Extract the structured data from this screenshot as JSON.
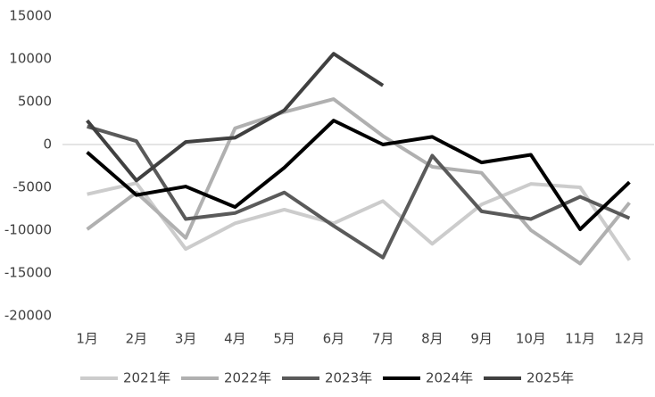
{
  "chart_data": {
    "type": "line",
    "categories": [
      "1月",
      "2月",
      "3月",
      "4月",
      "5月",
      "6月",
      "7月",
      "8月",
      "9月",
      "10月",
      "11月",
      "12月"
    ],
    "series": [
      {
        "name": "2021年",
        "color": "#cccccc",
        "values": [
          -5800,
          -4500,
          -12200,
          -9200,
          -7600,
          -9200,
          -6600,
          -11600,
          -7000,
          -4600,
          -5000,
          -13500
        ]
      },
      {
        "name": "2022年",
        "color": "#b0b0b0",
        "values": [
          -9900,
          -5600,
          -10900,
          1900,
          3800,
          5300,
          1000,
          -2600,
          -3300,
          -10000,
          -13900,
          -6800
        ]
      },
      {
        "name": "2023年",
        "color": "#5a5a5a",
        "values": [
          2100,
          400,
          -8700,
          -8000,
          -5600,
          -9500,
          -13200,
          -1300,
          -7800,
          -8700,
          -6100,
          -8600
        ]
      },
      {
        "name": "2024年",
        "color": "#000000",
        "values": [
          -900,
          -5900,
          -4900,
          -7300,
          -2700,
          2800,
          0,
          900,
          -2100,
          -1200,
          -9900,
          -4400
        ]
      },
      {
        "name": "2025年",
        "color": "#404040",
        "values": [
          2800,
          -4200,
          300,
          800,
          4000,
          10600,
          6900,
          null,
          null,
          null,
          null,
          null
        ]
      }
    ],
    "ylim": [
      -20000,
      15000
    ],
    "yticks": [
      -20000,
      -15000,
      -10000,
      -5000,
      0,
      5000,
      10000,
      15000
    ],
    "legend": "bottom"
  }
}
